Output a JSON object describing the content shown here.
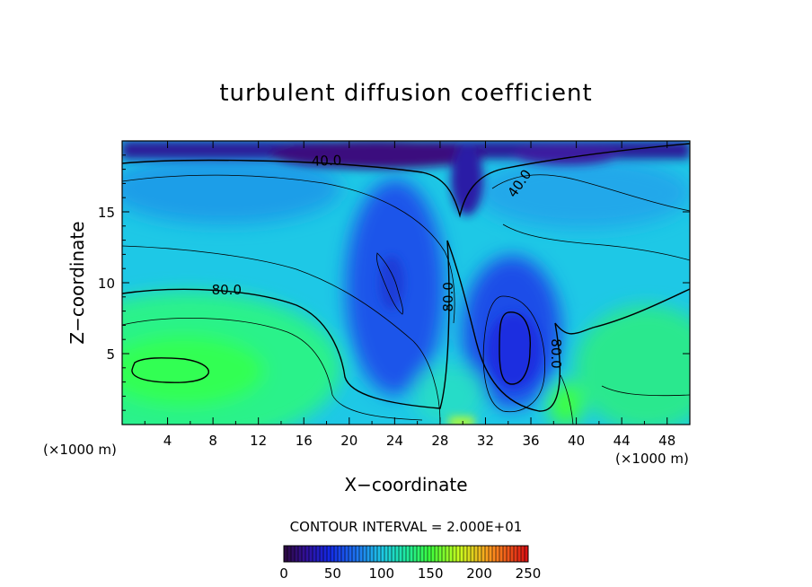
{
  "chart_data": {
    "type": "heatmap",
    "title": "turbulent diffusion coefficient",
    "xlabel": "X−coordinate",
    "ylabel": "Z−coordinate",
    "x_unit_left": "(×1000 m)",
    "x_unit_right": "(×1000 m)",
    "xlim": [
      0,
      50
    ],
    "ylim": [
      0,
      20
    ],
    "x_ticks": [
      4,
      8,
      12,
      16,
      20,
      24,
      28,
      32,
      36,
      40,
      44,
      48
    ],
    "y_ticks": [
      5,
      10,
      15
    ],
    "contour_interval_text": "CONTOUR INTERVAL = 2.000E+01",
    "contour_interval": 20,
    "contour_labels": [
      {
        "text": "40.0",
        "x": 18,
        "y": 18.6,
        "angle": -2
      },
      {
        "text": "40.0",
        "x": 35,
        "y": 17.0,
        "angle": -55
      },
      {
        "text": "80.0",
        "x": 9.2,
        "y": 9.5,
        "angle": 0
      },
      {
        "text": "80.0",
        "x": 28.7,
        "y": 9.0,
        "angle": -90
      },
      {
        "text": "80.0",
        "x": 38.2,
        "y": 5.0,
        "angle": 90
      }
    ],
    "colorbar": {
      "min": 0,
      "max": 250,
      "ticks": [
        "0",
        "50",
        "100",
        "150",
        "200",
        "250"
      ]
    },
    "colors": {
      "dark_purple": "#3a0f7e",
      "deep_blue": "#1a2ee0",
      "blue": "#2f6ff0",
      "sky": "#27b6f0",
      "cyan": "#19e0d0",
      "green": "#28f070",
      "bright_green": "#3cff3c",
      "yellow_green": "#c8ff1e",
      "orange": "#ff8c1e",
      "red": "#e01e1e"
    }
  }
}
